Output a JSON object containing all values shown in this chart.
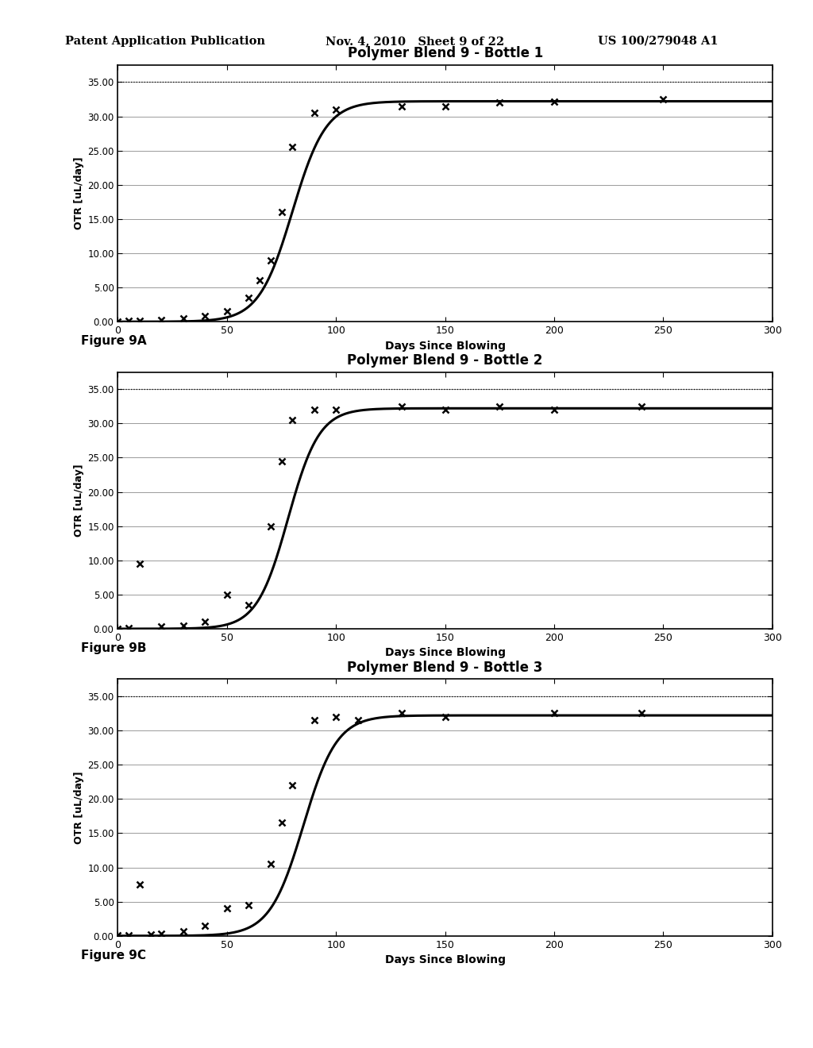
{
  "header_left": "Patent Application Publication",
  "header_mid": "Nov. 4, 2010   Sheet 9 of 22",
  "header_right": "US 100/279048 A1",
  "charts": [
    {
      "title": "Polymer Blend 9 - Bottle 1",
      "figure_label": "Figure 9A",
      "sigmoid_L": 32.2,
      "sigmoid_k": 0.13,
      "sigmoid_x0": 80,
      "data_points_x": [
        0,
        5,
        10,
        20,
        30,
        40,
        50,
        60,
        65,
        70,
        75,
        80,
        90,
        100,
        130,
        150,
        175,
        200,
        250
      ],
      "data_points_y": [
        0.05,
        0.1,
        0.15,
        0.3,
        0.5,
        0.8,
        1.5,
        3.5,
        6.0,
        9.0,
        16.0,
        25.5,
        30.5,
        31.0,
        31.5,
        31.5,
        32.0,
        32.2,
        32.5
      ]
    },
    {
      "title": "Polymer Blend 9 - Bottle 2",
      "figure_label": "Figure 9B",
      "sigmoid_L": 32.2,
      "sigmoid_k": 0.14,
      "sigmoid_x0": 78,
      "data_points_x": [
        0,
        5,
        10,
        20,
        30,
        40,
        50,
        60,
        70,
        75,
        80,
        90,
        100,
        130,
        150,
        175,
        200,
        240
      ],
      "data_points_y": [
        0.05,
        0.1,
        9.5,
        0.3,
        0.5,
        1.0,
        5.0,
        3.5,
        15.0,
        24.5,
        30.5,
        32.0,
        32.0,
        32.5,
        32.0,
        32.5,
        32.0,
        32.5
      ]
    },
    {
      "title": "Polymer Blend 9 - Bottle 3",
      "figure_label": "Figure 9C",
      "sigmoid_L": 32.2,
      "sigmoid_k": 0.13,
      "sigmoid_x0": 85,
      "data_points_x": [
        0,
        5,
        10,
        15,
        20,
        30,
        40,
        50,
        60,
        70,
        75,
        80,
        90,
        100,
        110,
        130,
        150,
        200,
        240
      ],
      "data_points_y": [
        0.05,
        0.1,
        7.5,
        0.2,
        0.3,
        0.7,
        1.5,
        4.0,
        4.5,
        10.5,
        16.5,
        22.0,
        31.5,
        32.0,
        31.5,
        32.5,
        32.0,
        32.5,
        32.5
      ]
    }
  ],
  "xlim": [
    0,
    300
  ],
  "ylim": [
    0,
    37.5
  ],
  "yticks": [
    0.0,
    5.0,
    10.0,
    15.0,
    20.0,
    25.0,
    30.0,
    35.0
  ],
  "xticks": [
    0,
    50,
    100,
    150,
    200,
    250,
    300
  ],
  "xlabel": "Days Since Blowing",
  "ylabel": "OTR [uL/day]",
  "bg_color": "#ffffff",
  "line_color": "#000000",
  "dotted_line_y": 35.0
}
